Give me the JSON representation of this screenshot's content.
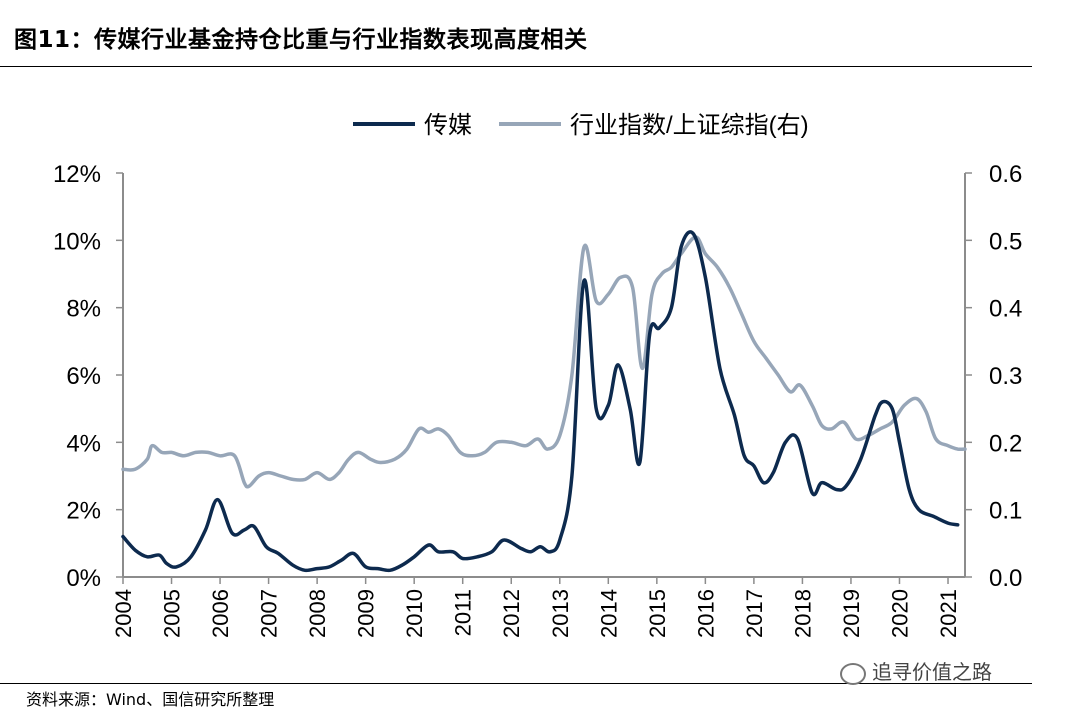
{
  "header": {
    "title": "图11：传媒行业基金持仓比重与行业指数表现高度相关"
  },
  "footer": {
    "source": "资料来源：Wind、国信研究所整理",
    "watermark": "追寻价值之路"
  },
  "colors": {
    "series_media": "#0d2a4e",
    "series_index": "#97a6b8",
    "axis": "#8c8c8c"
  },
  "chart_data": {
    "type": "line",
    "legend_position": "top-center",
    "grid": false,
    "x_ticks": [
      "2004",
      "2005",
      "2006",
      "2007",
      "2008",
      "2009",
      "2010",
      "2011",
      "2012",
      "2013",
      "2014",
      "2015",
      "2016",
      "2017",
      "2018",
      "2019",
      "2020",
      "2021"
    ],
    "xlim": [
      2004,
      2021.35
    ],
    "y_left": {
      "ticks": [
        "0%",
        "2%",
        "4%",
        "6%",
        "8%",
        "10%",
        "12%"
      ],
      "ylim": [
        0,
        12
      ]
    },
    "y_right": {
      "ticks": [
        "0.0",
        "0.1",
        "0.2",
        "0.3",
        "0.4",
        "0.5",
        "0.6"
      ],
      "ylim": [
        0,
        0.6
      ]
    },
    "series": [
      {
        "name": "传媒",
        "axis": "left",
        "points": [
          [
            2004.0,
            1.2
          ],
          [
            2004.25,
            0.8
          ],
          [
            2004.5,
            0.6
          ],
          [
            2004.75,
            0.65
          ],
          [
            2004.9,
            0.4
          ],
          [
            2005.1,
            0.3
          ],
          [
            2005.4,
            0.6
          ],
          [
            2005.7,
            1.4
          ],
          [
            2005.95,
            2.3
          ],
          [
            2006.25,
            1.3
          ],
          [
            2006.5,
            1.4
          ],
          [
            2006.7,
            1.5
          ],
          [
            2006.95,
            0.9
          ],
          [
            2007.2,
            0.7
          ],
          [
            2007.5,
            0.35
          ],
          [
            2007.75,
            0.2
          ],
          [
            2008.0,
            0.25
          ],
          [
            2008.25,
            0.3
          ],
          [
            2008.5,
            0.5
          ],
          [
            2008.75,
            0.7
          ],
          [
            2009.0,
            0.3
          ],
          [
            2009.25,
            0.25
          ],
          [
            2009.5,
            0.2
          ],
          [
            2009.75,
            0.35
          ],
          [
            2010.0,
            0.6
          ],
          [
            2010.3,
            0.95
          ],
          [
            2010.5,
            0.75
          ],
          [
            2010.8,
            0.75
          ],
          [
            2011.0,
            0.55
          ],
          [
            2011.3,
            0.6
          ],
          [
            2011.6,
            0.75
          ],
          [
            2011.85,
            1.1
          ],
          [
            2012.2,
            0.85
          ],
          [
            2012.4,
            0.75
          ],
          [
            2012.6,
            0.9
          ],
          [
            2012.8,
            0.75
          ],
          [
            2013.0,
            1.1
          ],
          [
            2013.25,
            3.0
          ],
          [
            2013.5,
            8.8
          ],
          [
            2013.75,
            5.0
          ],
          [
            2014.0,
            5.1
          ],
          [
            2014.2,
            6.3
          ],
          [
            2014.45,
            5.0
          ],
          [
            2014.65,
            3.4
          ],
          [
            2014.85,
            7.2
          ],
          [
            2015.05,
            7.4
          ],
          [
            2015.3,
            8.0
          ],
          [
            2015.5,
            9.8
          ],
          [
            2015.75,
            10.2
          ],
          [
            2016.0,
            8.9
          ],
          [
            2016.3,
            6.2
          ],
          [
            2016.6,
            4.8
          ],
          [
            2016.8,
            3.6
          ],
          [
            2017.0,
            3.3
          ],
          [
            2017.2,
            2.8
          ],
          [
            2017.4,
            3.1
          ],
          [
            2017.65,
            4.0
          ],
          [
            2017.9,
            4.1
          ],
          [
            2018.2,
            2.5
          ],
          [
            2018.4,
            2.8
          ],
          [
            2018.7,
            2.6
          ],
          [
            2018.9,
            2.7
          ],
          [
            2019.2,
            3.5
          ],
          [
            2019.5,
            4.8
          ],
          [
            2019.65,
            5.2
          ],
          [
            2019.85,
            5.0
          ],
          [
            2020.0,
            4.0
          ],
          [
            2020.2,
            2.6
          ],
          [
            2020.4,
            2.0
          ],
          [
            2020.7,
            1.8
          ],
          [
            2021.0,
            1.6
          ],
          [
            2021.2,
            1.55
          ]
        ]
      },
      {
        "name": "行业指数/上证综指(右)",
        "axis": "right",
        "points": [
          [
            2004.0,
            0.16
          ],
          [
            2004.25,
            0.16
          ],
          [
            2004.5,
            0.175
          ],
          [
            2004.6,
            0.195
          ],
          [
            2004.8,
            0.185
          ],
          [
            2005.0,
            0.185
          ],
          [
            2005.25,
            0.18
          ],
          [
            2005.5,
            0.185
          ],
          [
            2005.75,
            0.185
          ],
          [
            2006.0,
            0.18
          ],
          [
            2006.3,
            0.18
          ],
          [
            2006.5,
            0.14
          ],
          [
            2006.6,
            0.135
          ],
          [
            2006.8,
            0.15
          ],
          [
            2007.0,
            0.155
          ],
          [
            2007.25,
            0.15
          ],
          [
            2007.5,
            0.145
          ],
          [
            2007.75,
            0.145
          ],
          [
            2008.0,
            0.155
          ],
          [
            2008.25,
            0.145
          ],
          [
            2008.45,
            0.155
          ],
          [
            2008.65,
            0.175
          ],
          [
            2008.85,
            0.185
          ],
          [
            2009.1,
            0.175
          ],
          [
            2009.3,
            0.17
          ],
          [
            2009.6,
            0.175
          ],
          [
            2009.85,
            0.19
          ],
          [
            2010.1,
            0.22
          ],
          [
            2010.3,
            0.215
          ],
          [
            2010.5,
            0.22
          ],
          [
            2010.7,
            0.21
          ],
          [
            2010.95,
            0.185
          ],
          [
            2011.2,
            0.18
          ],
          [
            2011.45,
            0.185
          ],
          [
            2011.7,
            0.2
          ],
          [
            2012.0,
            0.2
          ],
          [
            2012.3,
            0.195
          ],
          [
            2012.55,
            0.205
          ],
          [
            2012.75,
            0.19
          ],
          [
            2013.0,
            0.21
          ],
          [
            2013.25,
            0.3
          ],
          [
            2013.5,
            0.49
          ],
          [
            2013.75,
            0.41
          ],
          [
            2014.0,
            0.42
          ],
          [
            2014.25,
            0.445
          ],
          [
            2014.5,
            0.43
          ],
          [
            2014.7,
            0.31
          ],
          [
            2014.9,
            0.42
          ],
          [
            2015.1,
            0.45
          ],
          [
            2015.3,
            0.46
          ],
          [
            2015.5,
            0.48
          ],
          [
            2015.8,
            0.505
          ],
          [
            2016.0,
            0.48
          ],
          [
            2016.25,
            0.46
          ],
          [
            2016.5,
            0.43
          ],
          [
            2016.75,
            0.39
          ],
          [
            2017.0,
            0.35
          ],
          [
            2017.25,
            0.325
          ],
          [
            2017.5,
            0.3
          ],
          [
            2017.75,
            0.275
          ],
          [
            2017.95,
            0.285
          ],
          [
            2018.2,
            0.255
          ],
          [
            2018.4,
            0.225
          ],
          [
            2018.6,
            0.22
          ],
          [
            2018.85,
            0.23
          ],
          [
            2019.1,
            0.205
          ],
          [
            2019.35,
            0.21
          ],
          [
            2019.6,
            0.22
          ],
          [
            2019.85,
            0.23
          ],
          [
            2020.1,
            0.255
          ],
          [
            2020.35,
            0.265
          ],
          [
            2020.55,
            0.245
          ],
          [
            2020.75,
            0.205
          ],
          [
            2021.0,
            0.195
          ],
          [
            2021.2,
            0.19
          ],
          [
            2021.35,
            0.19
          ]
        ]
      }
    ]
  }
}
